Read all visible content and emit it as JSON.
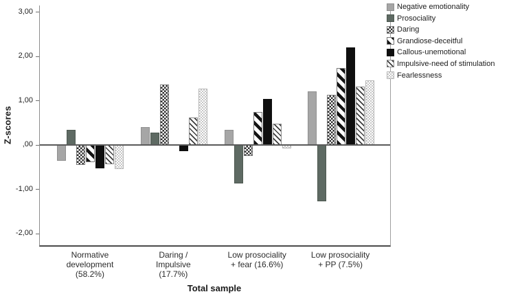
{
  "chart_data": {
    "type": "bar",
    "title": "",
    "xlabel": "Total sample",
    "ylabel": "Z-scores",
    "ylim": [
      -2.26,
      3.15
    ],
    "grid": false,
    "zero_line": true,
    "legend_position": "top-right-outside",
    "yticks": [
      {
        "value": 3,
        "label": "3,00"
      },
      {
        "value": 2,
        "label": "2,00"
      },
      {
        "value": 1,
        "label": "1,00"
      },
      {
        "value": 0,
        "label": ",00"
      },
      {
        "value": -1,
        "label": "-1,00"
      },
      {
        "value": -2,
        "label": "-2,00"
      }
    ],
    "categories": [
      {
        "lines": [
          "Normative",
          "development",
          "(58.2%)"
        ]
      },
      {
        "lines": [
          "Daring /",
          "Impulsive",
          "(17.7%)"
        ]
      },
      {
        "lines": [
          "Low prosociality",
          "+ fear (16.6%)"
        ]
      },
      {
        "lines": [
          "Low prosociality",
          "+ PP (7.5%)"
        ]
      }
    ],
    "series": [
      {
        "name": "Negative emotionality",
        "swatch": "light-gray",
        "color": "#a6a6a6",
        "values": [
          -0.36,
          0.4,
          0.35,
          1.22
        ]
      },
      {
        "name": "Prosociality",
        "swatch": "dark-gray",
        "color": "#5e6a63",
        "values": [
          0.34,
          0.28,
          -0.87,
          -1.27
        ]
      },
      {
        "name": "Daring",
        "swatch": "checker",
        "color": "#2e2e2e",
        "values": [
          -0.45,
          1.37,
          -0.24,
          1.14
        ]
      },
      {
        "name": "Grandiose-deceitful",
        "swatch": "diag-thick",
        "color": "#141414",
        "values": [
          -0.39,
          0.0,
          0.74,
          1.74
        ]
      },
      {
        "name": "Callous-unemotional",
        "swatch": "black",
        "color": "#0f0f0f",
        "values": [
          -0.53,
          -0.13,
          1.04,
          2.21
        ]
      },
      {
        "name": "Impulsive-need of stimulation",
        "swatch": "diag-thin",
        "color": "#3c3c3c",
        "values": [
          -0.43,
          0.62,
          0.48,
          1.32
        ]
      },
      {
        "name": "Fearlessness",
        "swatch": "light-checker",
        "color": "#c6c6c6",
        "values": [
          -0.54,
          1.28,
          -0.08,
          1.46
        ]
      }
    ]
  }
}
